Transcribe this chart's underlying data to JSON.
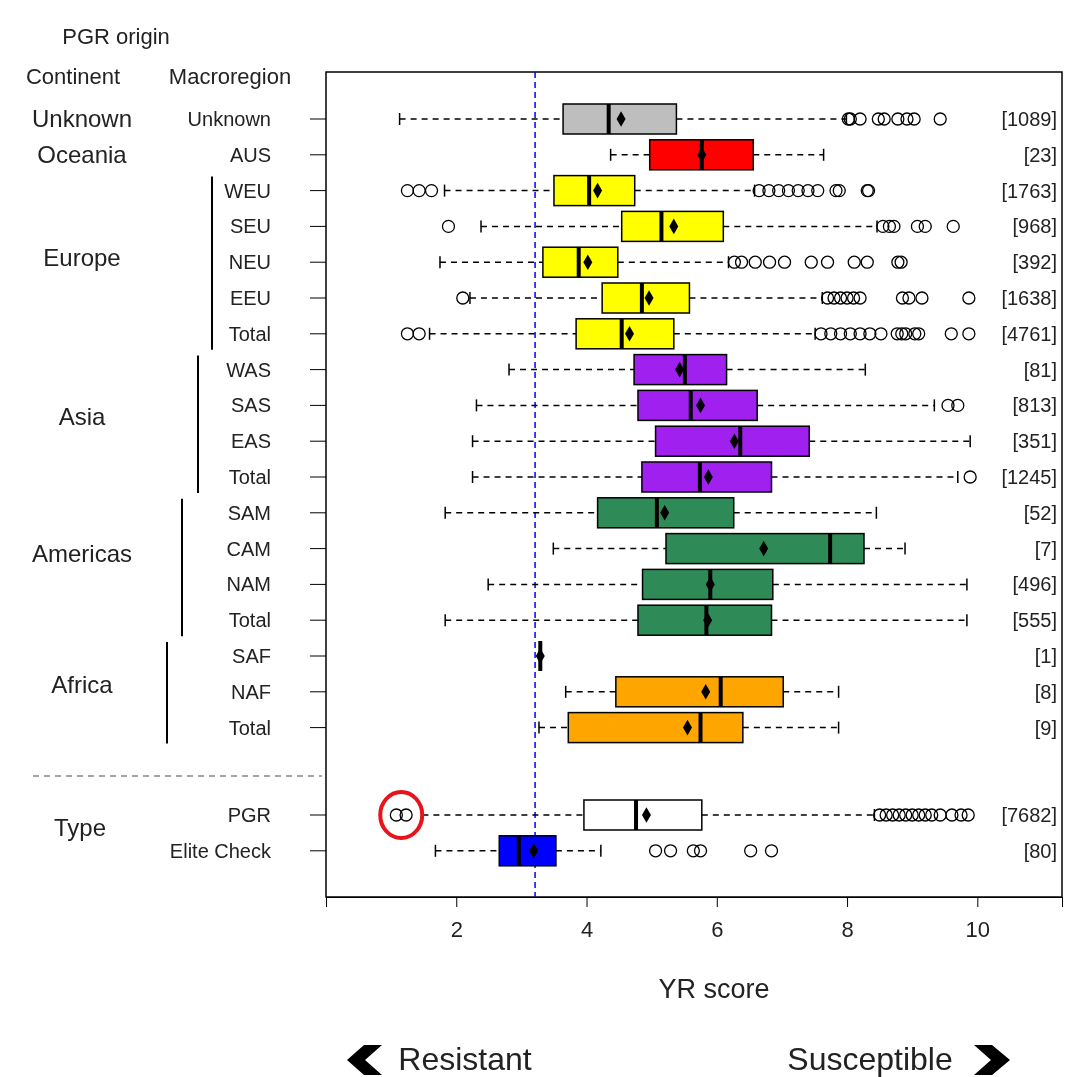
{
  "chart_data": {
    "type": "box",
    "orientation": "horizontal",
    "title": "PGR origin",
    "xlabel": "YR score",
    "categories": [
      "Unknown",
      "AUS",
      "WEU",
      "SEU",
      "NEU",
      "EEU",
      "Total",
      "WAS",
      "SAS",
      "EAS",
      "Total",
      "SAM",
      "CAM",
      "NAM",
      "Total",
      "SAF",
      "NAF",
      "Total",
      "PGR",
      "Elite Check"
    ],
    "y2_categories": [
      "[1089]",
      "[23]",
      "[1763]",
      "[968]",
      "[392]",
      "[1638]",
      "[4761]",
      "[81]",
      "[813]",
      "[351]",
      "[1245]",
      "[52]",
      "[7]",
      "[496]",
      "[555]",
      "[1]",
      "[8]",
      "[9]",
      "[7682]",
      "[80]"
    ],
    "colors": [
      "#bebebe",
      "#ff0000",
      "#ffff00",
      "#ffff00",
      "#ffff00",
      "#ffff00",
      "#ffff00",
      "#a020f0",
      "#a020f0",
      "#a020f0",
      "#a020f0",
      "#2e8b57",
      "#2e8b57",
      "#2e8b57",
      "#2e8b57",
      "#000000",
      "#ffa500",
      "#ffa500",
      "#ffffff",
      "#0000ff"
    ],
    "boxes": [
      {
        "low": 1.13,
        "q1": 3.64,
        "median": 4.34,
        "q3": 5.38,
        "high": 7.99,
        "mean": 4.53,
        "outliers": [
          8.02,
          8.05,
          8.2,
          8.48,
          8.57,
          8.78,
          8.92,
          9.03,
          9.43
        ]
      },
      {
        "low": 4.37,
        "q1": 4.97,
        "median": 5.77,
        "q3": 6.56,
        "high": 7.64,
        "mean": 5.77
      },
      {
        "low": 1.82,
        "q1": 3.5,
        "median": 4.04,
        "q3": 4.74,
        "high": 6.58,
        "mean": 4.17,
        "outliers": [
          1.25,
          1.43,
          1.62,
          6.65,
          6.8,
          6.95,
          7.1,
          7.25,
          7.4,
          7.55,
          7.83,
          7.88,
          8.31,
          8.33
        ]
      },
      {
        "low": 2.38,
        "q1": 4.54,
        "median": 5.15,
        "q3": 6.1,
        "high": 8.46,
        "mean": 5.34,
        "outliers": [
          1.88,
          8.55,
          8.65,
          8.72,
          9.08,
          9.2,
          9.63
        ]
      },
      {
        "low": 1.75,
        "q1": 3.33,
        "median": 3.88,
        "q3": 4.48,
        "high": 6.18,
        "mean": 4.02,
        "outliers": [
          6.27,
          6.38,
          6.59,
          6.81,
          7.04,
          7.45,
          7.7,
          8.11,
          8.31,
          8.78,
          8.83
        ]
      },
      {
        "low": 2.21,
        "q1": 4.24,
        "median": 4.85,
        "q3": 5.58,
        "high": 7.62,
        "mean": 4.96,
        "outliers": [
          2.1,
          7.7,
          7.8,
          7.9,
          8.0,
          8.1,
          8.2,
          8.85,
          8.95,
          9.15,
          9.87
        ]
      },
      {
        "low": 1.59,
        "q1": 3.84,
        "median": 4.54,
        "q3": 5.34,
        "high": 7.51,
        "mean": 4.66,
        "outliers": [
          1.25,
          1.43,
          7.6,
          7.75,
          7.9,
          8.05,
          8.2,
          8.35,
          8.52,
          8.77,
          8.84,
          8.9,
          9.04,
          9.1,
          9.6,
          9.87
        ]
      },
      {
        "low": 2.81,
        "q1": 4.73,
        "median": 5.51,
        "q3": 6.15,
        "high": 8.28,
        "mean": 5.43
      },
      {
        "low": 2.31,
        "q1": 4.79,
        "median": 5.6,
        "q3": 6.62,
        "high": 9.34,
        "mean": 5.75,
        "outliers": [
          9.55,
          9.7
        ]
      },
      {
        "low": 2.25,
        "q1": 5.06,
        "median": 6.36,
        "q3": 7.42,
        "high": 9.89,
        "mean": 6.27
      },
      {
        "low": 2.25,
        "q1": 4.85,
        "median": 5.74,
        "q3": 6.84,
        "high": 9.7,
        "mean": 5.87,
        "outliers": [
          9.89
        ]
      },
      {
        "low": 1.83,
        "q1": 4.17,
        "median": 5.08,
        "q3": 6.26,
        "high": 8.45,
        "mean": 5.2
      },
      {
        "low": 3.49,
        "q1": 5.22,
        "median": 7.74,
        "q3": 8.26,
        "high": 8.89,
        "mean": 6.72
      },
      {
        "low": 2.49,
        "q1": 4.86,
        "median": 5.9,
        "q3": 6.86,
        "high": 9.84,
        "mean": 5.9
      },
      {
        "low": 1.83,
        "q1": 4.79,
        "median": 5.84,
        "q3": 6.84,
        "high": 9.84,
        "mean": 5.86
      },
      {
        "low": 3.29,
        "q1": 3.29,
        "median": 3.29,
        "q3": 3.29,
        "high": 3.29,
        "mean": 3.29
      },
      {
        "low": 3.68,
        "q1": 4.45,
        "median": 6.06,
        "q3": 7.02,
        "high": 7.87,
        "mean": 5.83
      },
      {
        "low": 3.27,
        "q1": 3.72,
        "median": 5.75,
        "q3": 6.4,
        "high": 7.87,
        "mean": 5.55
      },
      {
        "low": 1.48,
        "q1": 3.96,
        "median": 4.76,
        "q3": 5.77,
        "high": 8.42,
        "mean": 4.92,
        "outliers": [
          1.08,
          1.23,
          8.5,
          8.6,
          8.7,
          8.8,
          8.9,
          9.0,
          9.1,
          9.2,
          9.3,
          9.43,
          9.61,
          9.75,
          9.86
        ]
      },
      {
        "low": 1.68,
        "q1": 2.66,
        "median": 2.96,
        "q3": 3.53,
        "high": 4.22,
        "mean": 3.19,
        "outliers": [
          5.06,
          5.29,
          5.64,
          5.75,
          6.52,
          6.84
        ]
      }
    ],
    "xlim": [
      0,
      11.3
    ],
    "xticks": [
      2,
      4,
      6,
      8,
      10
    ],
    "ref_lines": [
      {
        "axis": "x",
        "value": 3.21,
        "color": "#0000ff",
        "line_style": "dashed"
      }
    ],
    "annotations": [
      "Continent",
      "Macroregion",
      "Unknown",
      "Oceania",
      "Europe",
      "Asia",
      "Americas",
      "Africa",
      "Type",
      "Resistant",
      "Susceptible"
    ]
  }
}
